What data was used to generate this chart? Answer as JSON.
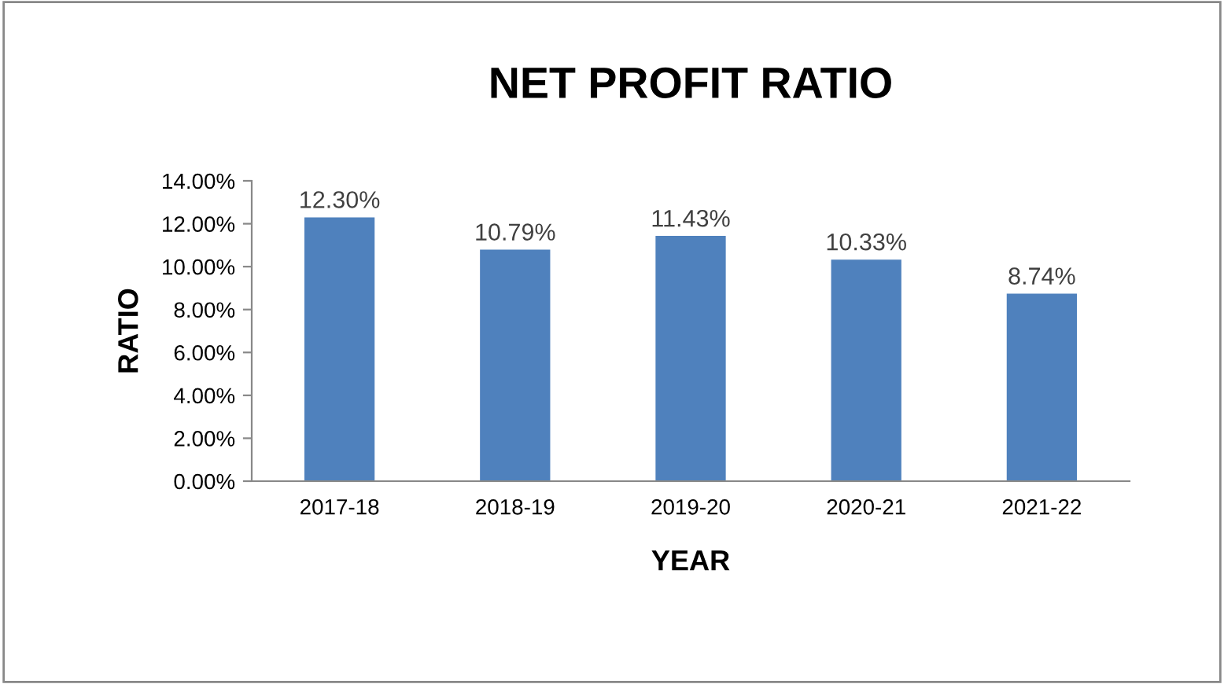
{
  "chart_data": {
    "type": "bar",
    "title": "NET PROFIT RATIO",
    "xlabel": "YEAR",
    "ylabel": "RATIO",
    "categories": [
      "2017-18",
      "2018-19",
      "2019-20",
      "2020-21",
      "2021-22"
    ],
    "values": [
      12.3,
      10.79,
      11.43,
      10.33,
      8.74
    ],
    "value_labels": [
      "12.30%",
      "10.79%",
      "11.43%",
      "10.33%",
      "8.74%"
    ],
    "color": "#4f81bd",
    "ylim": [
      0,
      14
    ],
    "yticks": [
      {
        "value": 0,
        "label": "0.00%"
      },
      {
        "value": 2,
        "label": "2.00%"
      },
      {
        "value": 4,
        "label": "4.00%"
      },
      {
        "value": 6,
        "label": "6.00%"
      },
      {
        "value": 8,
        "label": "8.00%"
      },
      {
        "value": 10,
        "label": "10.00%"
      },
      {
        "value": 12,
        "label": "12.00%"
      },
      {
        "value": 14,
        "label": "14.00%"
      }
    ],
    "grid": false,
    "legend": false
  }
}
